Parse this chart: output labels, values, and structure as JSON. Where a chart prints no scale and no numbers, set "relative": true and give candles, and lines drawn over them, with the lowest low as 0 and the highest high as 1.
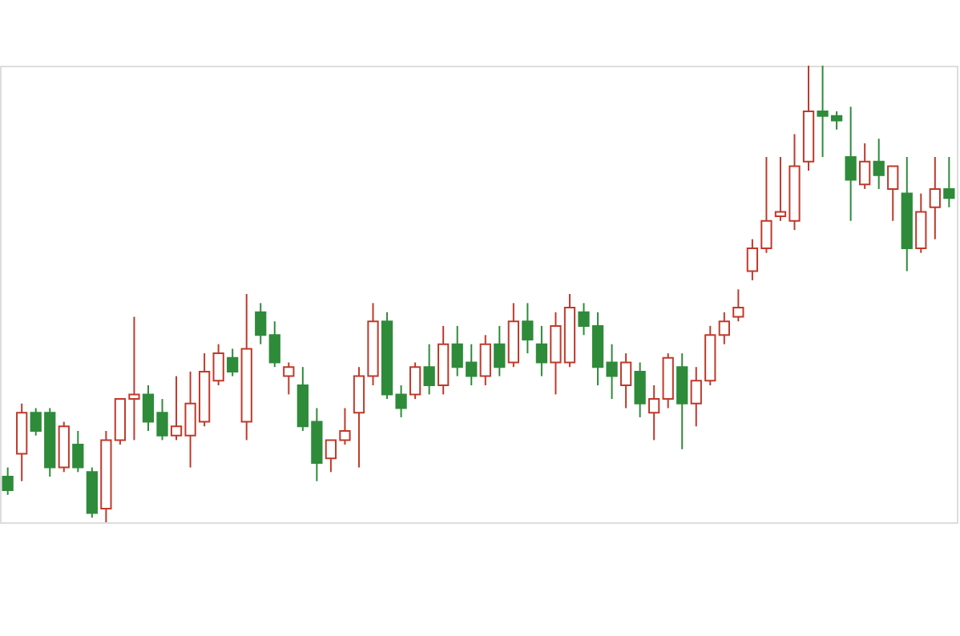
{
  "chart_data": {
    "type": "candlestick",
    "relative": true,
    "tick_labels": false,
    "categories": [
      null,
      null,
      null,
      null,
      null,
      null,
      null,
      null,
      null,
      null,
      null,
      null,
      null,
      null,
      null,
      null,
      null,
      null,
      null,
      null,
      null,
      null,
      null,
      null,
      null,
      null,
      null,
      null,
      null,
      null,
      null,
      null,
      null,
      null,
      null,
      null,
      null,
      null,
      null,
      null,
      null,
      null,
      null,
      null,
      null,
      null,
      null,
      null,
      null,
      null,
      null,
      null,
      null,
      null,
      null,
      null,
      null,
      null,
      null,
      null,
      null,
      null,
      null,
      null,
      null,
      null,
      null,
      null
    ],
    "ohlc": [
      [
        0.1,
        0.12,
        0.06,
        0.07
      ],
      [
        0.15,
        0.26,
        0.09,
        0.24
      ],
      [
        0.24,
        0.25,
        0.19,
        0.2
      ],
      [
        0.24,
        0.25,
        0.1,
        0.12
      ],
      [
        0.12,
        0.22,
        0.11,
        0.21
      ],
      [
        0.17,
        0.2,
        0.11,
        0.12
      ],
      [
        0.11,
        0.12,
        0.01,
        0.02
      ],
      [
        0.03,
        0.2,
        0.0,
        0.18
      ],
      [
        0.18,
        0.27,
        0.17,
        0.27
      ],
      [
        0.27,
        0.45,
        0.18,
        0.28
      ],
      [
        0.28,
        0.3,
        0.2,
        0.22
      ],
      [
        0.24,
        0.27,
        0.18,
        0.19
      ],
      [
        0.19,
        0.32,
        0.18,
        0.21
      ],
      [
        0.19,
        0.33,
        0.12,
        0.26
      ],
      [
        0.22,
        0.37,
        0.21,
        0.33
      ],
      [
        0.31,
        0.39,
        0.3,
        0.37
      ],
      [
        0.36,
        0.38,
        0.32,
        0.33
      ],
      [
        0.22,
        0.5,
        0.18,
        0.38
      ],
      [
        0.46,
        0.48,
        0.39,
        0.41
      ],
      [
        0.41,
        0.44,
        0.34,
        0.35
      ],
      [
        0.32,
        0.35,
        0.28,
        0.34
      ],
      [
        0.3,
        0.34,
        0.2,
        0.21
      ],
      [
        0.22,
        0.25,
        0.09,
        0.13
      ],
      [
        0.14,
        0.18,
        0.11,
        0.18
      ],
      [
        0.18,
        0.25,
        0.17,
        0.2
      ],
      [
        0.24,
        0.34,
        0.12,
        0.32
      ],
      [
        0.32,
        0.48,
        0.3,
        0.44
      ],
      [
        0.44,
        0.46,
        0.27,
        0.28
      ],
      [
        0.28,
        0.3,
        0.23,
        0.25
      ],
      [
        0.28,
        0.35,
        0.27,
        0.34
      ],
      [
        0.34,
        0.39,
        0.28,
        0.3
      ],
      [
        0.3,
        0.43,
        0.28,
        0.39
      ],
      [
        0.39,
        0.43,
        0.32,
        0.34
      ],
      [
        0.35,
        0.39,
        0.3,
        0.32
      ],
      [
        0.32,
        0.41,
        0.3,
        0.39
      ],
      [
        0.39,
        0.43,
        0.32,
        0.34
      ],
      [
        0.35,
        0.48,
        0.34,
        0.44
      ],
      [
        0.44,
        0.48,
        0.37,
        0.4
      ],
      [
        0.39,
        0.43,
        0.32,
        0.35
      ],
      [
        0.35,
        0.46,
        0.28,
        0.43
      ],
      [
        0.35,
        0.5,
        0.34,
        0.47
      ],
      [
        0.46,
        0.48,
        0.41,
        0.43
      ],
      [
        0.43,
        0.46,
        0.3,
        0.34
      ],
      [
        0.35,
        0.39,
        0.27,
        0.32
      ],
      [
        0.3,
        0.37,
        0.25,
        0.35
      ],
      [
        0.33,
        0.35,
        0.23,
        0.26
      ],
      [
        0.24,
        0.3,
        0.18,
        0.27
      ],
      [
        0.27,
        0.37,
        0.25,
        0.36
      ],
      [
        0.34,
        0.37,
        0.16,
        0.26
      ],
      [
        0.26,
        0.34,
        0.21,
        0.31
      ],
      [
        0.31,
        0.43,
        0.3,
        0.41
      ],
      [
        0.41,
        0.46,
        0.39,
        0.44
      ],
      [
        0.45,
        0.51,
        0.44,
        0.47
      ],
      [
        0.55,
        0.62,
        0.53,
        0.6
      ],
      [
        0.6,
        0.8,
        0.59,
        0.66
      ],
      [
        0.67,
        0.8,
        0.66,
        0.68
      ],
      [
        0.66,
        0.85,
        0.64,
        0.78
      ],
      [
        0.79,
        1.0,
        0.77,
        0.9
      ],
      [
        0.9,
        1.0,
        0.8,
        0.89
      ],
      [
        0.89,
        0.9,
        0.86,
        0.88
      ],
      [
        0.8,
        0.91,
        0.66,
        0.75
      ],
      [
        0.74,
        0.83,
        0.73,
        0.79
      ],
      [
        0.79,
        0.84,
        0.73,
        0.76
      ],
      [
        0.73,
        0.78,
        0.66,
        0.78
      ],
      [
        0.72,
        0.8,
        0.55,
        0.6
      ],
      [
        0.6,
        0.72,
        0.59,
        0.68
      ],
      [
        0.69,
        0.8,
        0.62,
        0.73
      ],
      [
        0.73,
        0.8,
        0.69,
        0.71
      ]
    ],
    "colors": [
      "#2e8b3a",
      "#c0392b",
      "#2e8b3a",
      "#2e8b3a",
      "#c0392b",
      "#2e8b3a",
      "#2e8b3a",
      "#c0392b",
      "#c0392b",
      "#c0392b",
      "#2e8b3a",
      "#2e8b3a",
      "#c0392b",
      "#c0392b",
      "#c0392b",
      "#c0392b",
      "#2e8b3a",
      "#c0392b",
      "#2e8b3a",
      "#2e8b3a",
      "#c0392b",
      "#2e8b3a",
      "#2e8b3a",
      "#c0392b",
      "#c0392b",
      "#c0392b",
      "#c0392b",
      "#2e8b3a",
      "#2e8b3a",
      "#c0392b",
      "#2e8b3a",
      "#c0392b",
      "#2e8b3a",
      "#2e8b3a",
      "#c0392b",
      "#2e8b3a",
      "#c0392b",
      "#2e8b3a",
      "#2e8b3a",
      "#c0392b",
      "#c0392b",
      "#2e8b3a",
      "#2e8b3a",
      "#2e8b3a",
      "#c0392b",
      "#2e8b3a",
      "#c0392b",
      "#c0392b",
      "#2e8b3a",
      "#c0392b",
      "#c0392b",
      "#c0392b",
      "#c0392b",
      "#c0392b",
      "#c0392b",
      "#c0392b",
      "#c0392b",
      "#c0392b",
      "#2e8b3a",
      "#2e8b3a",
      "#2e8b3a",
      "#c0392b",
      "#2e8b3a",
      "#c0392b",
      "#2e8b3a",
      "#c0392b",
      "#c0392b",
      "#2e8b3a"
    ]
  }
}
